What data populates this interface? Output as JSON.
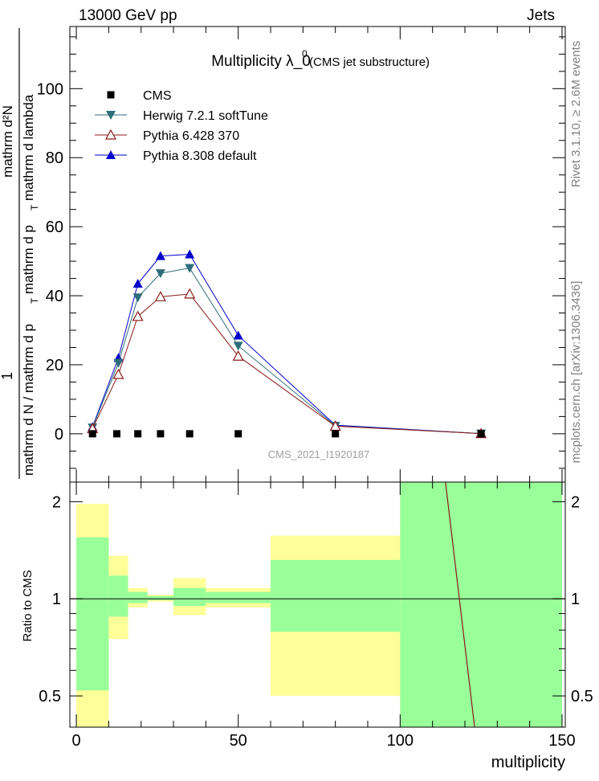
{
  "header": {
    "left": "13000 GeV pp",
    "right": "Jets"
  },
  "side_labels": {
    "rivet": "Rivet 3.1.10, ≥ 2.6M events",
    "mcplots": "mcplots.cern.ch [arXiv:1306.3436]"
  },
  "watermark": "CMS_2021_I1920187",
  "colors": {
    "cms": "#000000",
    "herwig": "#2e6e7a",
    "pythia6": "#8b1a1a",
    "pythia8": "#0000cc",
    "band_green": "#99ff99",
    "band_yellow": "#ffff99"
  },
  "chart_data": [
    {
      "type": "line",
      "title": "Multiplicity  λ_0",
      "title_sup": "0",
      "title_note": "(CMS jet substructure)",
      "ylabel_numerator": "1",
      "ylabel_numerator_right": "mathrm d²N",
      "ylabel_denominator": "mathrm d N / mathrm d p",
      "ylabel_denominator_right": "mathrm d p",
      "ylabel_denominator_tail": "mathrm d lambda",
      "ylabel_sub": "T",
      "xlim": [
        -2,
        151
      ],
      "ylim": [
        -14,
        118
      ],
      "y_ticks": [
        "0",
        "20",
        "40",
        "60",
        "80",
        "100"
      ],
      "legend_position": "top-left",
      "series": [
        {
          "name": "CMS",
          "marker": "square",
          "color": "#000000",
          "x": [
            5,
            12.5,
            19,
            26,
            35,
            50,
            80,
            125
          ],
          "y": [
            0,
            0,
            0,
            0,
            0,
            0,
            0,
            0
          ]
        },
        {
          "name": "Herwig 7.2.1 softTune",
          "marker": "triangle-down",
          "color": "#2e6e7a",
          "x": [
            5,
            13,
            19,
            26,
            35,
            50,
            80,
            125
          ],
          "y": [
            1.8,
            20.5,
            39.5,
            46.5,
            48,
            25.5,
            2.3,
            0.05
          ]
        },
        {
          "name": "Pythia 6.428 370",
          "marker": "triangle-open",
          "color": "#8b1a1a",
          "x": [
            5,
            13,
            19,
            26,
            35,
            50,
            80,
            125
          ],
          "y": [
            1.5,
            17.2,
            34,
            39.7,
            40.5,
            22.5,
            2.2,
            0.05
          ]
        },
        {
          "name": "Pythia 8.308 default",
          "marker": "triangle-up",
          "color": "#0000cc",
          "x": [
            5,
            13,
            19,
            26,
            35,
            50,
            80,
            125
          ],
          "y": [
            2,
            22,
            43.5,
            51.5,
            52,
            28.5,
            2.5,
            0.05
          ]
        }
      ]
    },
    {
      "type": "area",
      "ylabel": "Ratio to CMS",
      "xlabel": "multiplicity",
      "xlim": [
        -2,
        151
      ],
      "ylim": [
        0.4,
        2.3
      ],
      "x_ticks": [
        "0",
        "50",
        "100",
        "150"
      ],
      "y_ticks": [
        "0.5",
        "1",
        "2"
      ],
      "bins": [
        {
          "x": [
            0,
            10
          ],
          "green": [
            0.52,
            1.55
          ],
          "yellow": [
            0.4,
            1.97
          ]
        },
        {
          "x": [
            10,
            16
          ],
          "green": [
            0.88,
            1.18
          ],
          "yellow": [
            0.75,
            1.36
          ]
        },
        {
          "x": [
            16,
            22
          ],
          "green": [
            0.97,
            1.05
          ],
          "yellow": [
            0.94,
            1.08
          ]
        },
        {
          "x": [
            22,
            30
          ],
          "green": [
            0.99,
            1.02
          ],
          "yellow": [
            0.98,
            1.03
          ]
        },
        {
          "x": [
            30,
            40
          ],
          "green": [
            0.95,
            1.08
          ],
          "yellow": [
            0.89,
            1.16
          ]
        },
        {
          "x": [
            40,
            60
          ],
          "green": [
            0.97,
            1.05
          ],
          "yellow": [
            0.94,
            1.08
          ]
        },
        {
          "x": [
            60,
            100
          ],
          "green": [
            0.79,
            1.32
          ],
          "yellow": [
            0.5,
            1.57
          ]
        },
        {
          "x": [
            100,
            150
          ],
          "green": [
            0.4,
            2.3
          ],
          "yellow": [
            0.4,
            2.3
          ]
        }
      ],
      "ratio_line": {
        "x": [
          114,
          123
        ],
        "y": [
          2.3,
          0.4
        ]
      }
    }
  ]
}
